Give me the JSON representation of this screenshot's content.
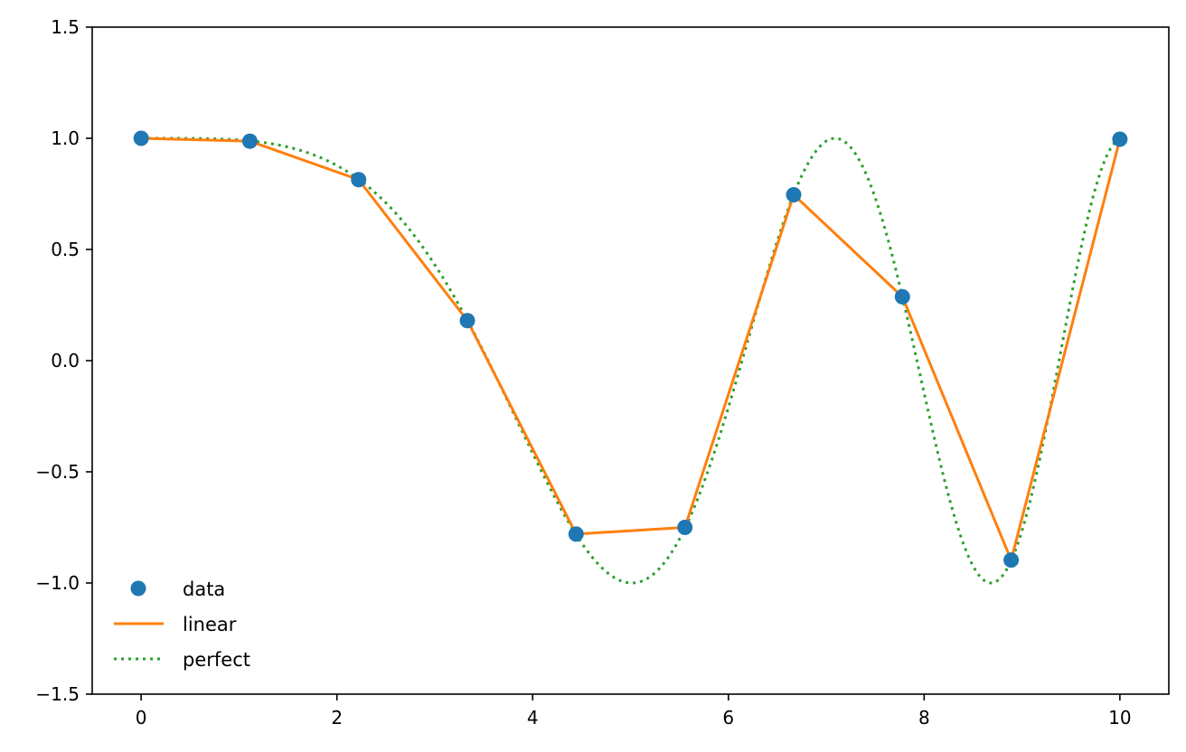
{
  "chart_data": {
    "type": "line",
    "title": "",
    "xlabel": "",
    "ylabel": "",
    "xlim": [
      -0.5,
      10.5
    ],
    "ylim": [
      -1.5,
      1.5
    ],
    "xticks": [
      0,
      2,
      4,
      6,
      8,
      10
    ],
    "yticks": [
      -1.5,
      -1.0,
      -0.5,
      0.0,
      0.5,
      1.0,
      1.5
    ],
    "xtick_labels": [
      "0",
      "2",
      "4",
      "6",
      "8",
      "10"
    ],
    "ytick_labels": [
      "−1.5",
      "−1.0",
      "−0.5",
      "0.0",
      "0.5",
      "1.0",
      "1.5"
    ],
    "grid": false,
    "legend_position": "lower-left",
    "series": [
      {
        "name": "data",
        "style": "markers",
        "color": "#1f77b4",
        "x": [
          0,
          1.111,
          2.222,
          3.333,
          4.444,
          5.556,
          6.667,
          7.778,
          8.889,
          10
        ],
        "y": [
          1.0,
          0.987,
          0.814,
          0.18,
          -0.78,
          -0.75,
          0.746,
          0.287,
          -0.897,
          0.996
        ]
      },
      {
        "name": "linear",
        "style": "solid",
        "color": "#ff7f0e",
        "x": [
          0,
          1.111,
          2.222,
          3.333,
          4.444,
          5.556,
          6.667,
          7.778,
          8.889,
          10
        ],
        "y": [
          1.0,
          0.987,
          0.814,
          0.18,
          -0.78,
          -0.75,
          0.746,
          0.287,
          -0.897,
          0.996
        ]
      },
      {
        "name": "perfect",
        "style": "dotted",
        "color": "#2ca02c",
        "function": "cos(x^2/8)",
        "x_range": [
          0,
          10
        ]
      }
    ]
  }
}
